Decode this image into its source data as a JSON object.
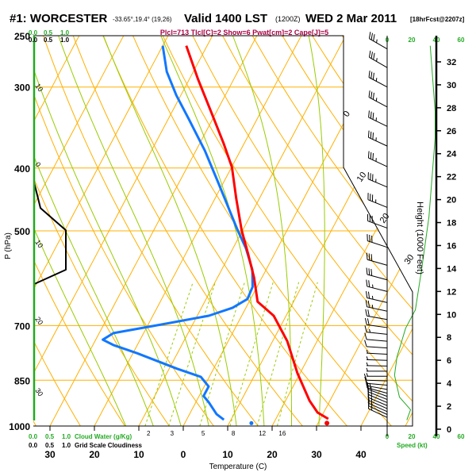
{
  "header": {
    "station": "#1: WORCESTER",
    "coords": "-33.65°,19.4° (19,26)",
    "valid": "Valid 1400 LST",
    "utc": "(1200Z)",
    "date": "WED 2 Mar 2011",
    "forecast": "[18hrFcst@2207z]",
    "indices": "Plcl=713 Tlcl[C]=2 Show=6 Pwat[cm]=2 Cape[J]=5"
  },
  "colors": {
    "temperature": "#ff0000",
    "dewpoint": "#1177ff",
    "grid": "#ffb000",
    "moist": "#99cc00",
    "speed": "#22aa22"
  },
  "chart_data": {
    "type": "skew-t log-p",
    "title": "#1: WORCESTER Valid 1400 LST WED 2 Mar 2011",
    "xlabel": "Temperature (C)",
    "ylabel": "P (hPa)",
    "right_ylabel": "Height (1000 Feet)",
    "pressure_ticks": [
      "250",
      "300",
      "400",
      "500",
      "700",
      "850",
      "1000"
    ],
    "pressure_levels": [
      250,
      300,
      400,
      500,
      700,
      850,
      1000
    ],
    "temp_ticks": [
      "30",
      "20",
      "10",
      "0",
      "10",
      "20",
      "30",
      "40"
    ],
    "temp_tick_values": [
      -30,
      -20,
      -10,
      0,
      10,
      20,
      30,
      40
    ],
    "height_ticks": [
      "0",
      "2",
      "4",
      "6",
      "8",
      "10",
      "12",
      "14",
      "16",
      "18",
      "20",
      "22",
      "24",
      "26",
      "28",
      "30",
      "32"
    ],
    "speed_ticks": [
      "0",
      "20",
      "40",
      "60"
    ],
    "speed_label": "Speed (kt)",
    "cloud_water_ticks": [
      "0.0",
      "0.5",
      "1.0"
    ],
    "cloud_water_label": "Cloud Water (g/Kg)",
    "cloudiness_ticks": [
      "0.0",
      "0.5",
      "1.0"
    ],
    "cloudiness_label": "Grid Scale Cloudiness",
    "isotherm_labels": [
      "0",
      "10",
      "20",
      "30"
    ],
    "isotherm_label_values": [
      0,
      10,
      20,
      30
    ],
    "adiabat_labels": [
      "10",
      "0",
      "10",
      "20",
      "30"
    ],
    "mixing_ratio_labels": [
      "2",
      "3",
      "5",
      "8",
      "12",
      "16"
    ],
    "mixing_ratio_values": [
      2,
      3,
      5,
      8,
      12,
      16
    ],
    "temperature": {
      "p": [
        975,
        953,
        914,
        829,
        740,
        676,
        643,
        590,
        543,
        499,
        446,
        399,
        366,
        326,
        292,
        259
      ],
      "t": [
        31.8,
        28.6,
        25.4,
        19.4,
        13.3,
        7.2,
        1.9,
        -1.8,
        -5.9,
        -10.2,
        -15.2,
        -19.9,
        -24.7,
        -31.5,
        -38,
        -44.7
      ]
    },
    "dewpoint": {
      "p": [
        978,
        959,
        919,
        899,
        869,
        840,
        816,
        772,
        750,
        736,
        719,
        695,
        676,
        657,
        637,
        610,
        574,
        532,
        499,
        421,
        376,
        336,
        309,
        284,
        259
      ],
      "td": [
        8.4,
        6.1,
        2.9,
        1.0,
        1.0,
        -1.9,
        -8.2,
        -19.1,
        -25.4,
        -28.4,
        -26.8,
        -16,
        -7.4,
        -3.0,
        -0.7,
        -1.0,
        -3.1,
        -7.1,
        -11.1,
        -21.2,
        -28,
        -35.4,
        -41,
        -46,
        -50
      ]
    },
    "surface": {
      "t": 32,
      "td": 15
    },
    "wind_speed_profile": {
      "height_kft": [
        0.8,
        1.7,
        2.8,
        4.7,
        6.3,
        8.8,
        10.4,
        13.9,
        18.5,
        25.4,
        27.7,
        33.4
      ],
      "speed_kt": [
        16,
        19,
        10,
        6,
        8,
        15,
        23,
        28,
        34,
        39,
        39,
        35
      ]
    },
    "grid_cloudiness": {
      "p": [
        421,
        461,
        499,
        574,
        604
      ],
      "fraction": [
        0,
        0.2,
        1.0,
        1.0,
        0
      ]
    },
    "wind_barbs": {
      "p": [
        262,
        280,
        300,
        322,
        345,
        370,
        398,
        428,
        460,
        495,
        530,
        565,
        595,
        620,
        645,
        665,
        685,
        705,
        722,
        740,
        758,
        775,
        792,
        808,
        823,
        838,
        852,
        865,
        878,
        890,
        900,
        910,
        920,
        930,
        940,
        950,
        960,
        970
      ],
      "dir": [
        300,
        300,
        298,
        298,
        296,
        295,
        295,
        293,
        292,
        290,
        288,
        286,
        285,
        284,
        283,
        282,
        280,
        278,
        276,
        275,
        274,
        273,
        272,
        271,
        270,
        270,
        272,
        275,
        280,
        285,
        290,
        292,
        293,
        293,
        294,
        294,
        295,
        295
      ],
      "spd": [
        35,
        35,
        35,
        35,
        35,
        35,
        35,
        35,
        35,
        30,
        30,
        30,
        30,
        25,
        25,
        25,
        20,
        20,
        15,
        10,
        10,
        5,
        5,
        5,
        5,
        5,
        10,
        10,
        15,
        15,
        15,
        15,
        15,
        15,
        15,
        15,
        15,
        15
      ]
    }
  }
}
